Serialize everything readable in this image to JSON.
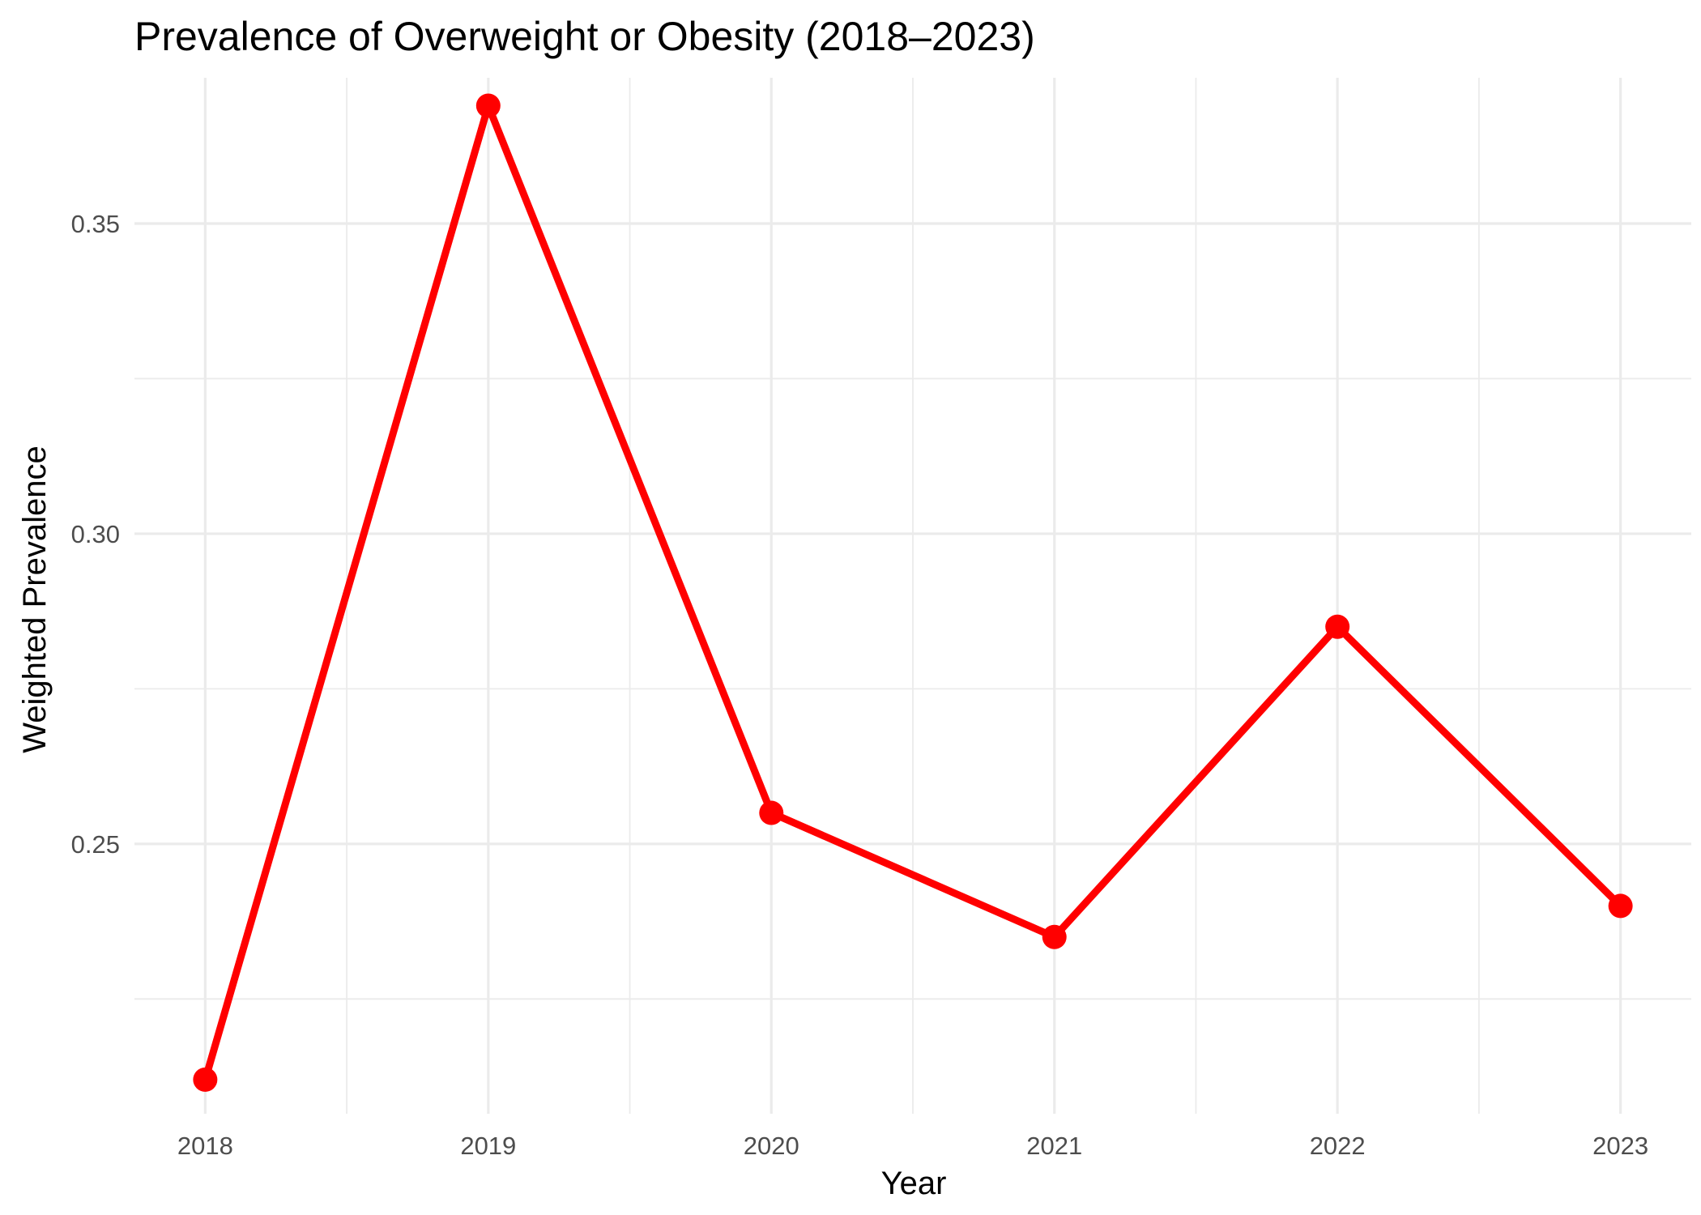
{
  "chart_data": {
    "type": "line",
    "title": "Prevalence of Overweight or Obesity (2018–2023)",
    "xlabel": "Year",
    "ylabel": "Weighted Prevalence",
    "x": [
      2018,
      2019,
      2020,
      2021,
      2022,
      2023
    ],
    "x_tick_labels": [
      "2018",
      "2019",
      "2020",
      "2021",
      "2022",
      "2023"
    ],
    "y_ticks": [
      0.25,
      0.3,
      0.35
    ],
    "y_tick_labels": [
      "0.25",
      "0.30",
      "0.35"
    ],
    "xlim": [
      2017.75,
      2023.25
    ],
    "ylim": [
      0.2065,
      0.3735
    ],
    "series": [
      {
        "values": [
          0.212,
          0.369,
          0.255,
          0.235,
          0.285,
          0.24
        ],
        "color": "#ff0000"
      }
    ],
    "grid": true,
    "legend": "none"
  }
}
